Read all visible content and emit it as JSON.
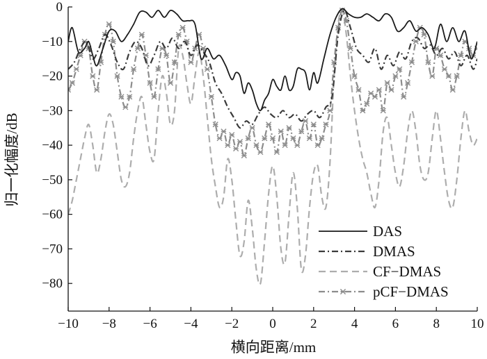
{
  "chart_data": {
    "type": "line",
    "title": "",
    "xlabel": "横向距离/mm",
    "ylabel": "归一化幅度/dB",
    "xlim": [
      -10,
      10
    ],
    "ylim": [
      -88,
      0
    ],
    "xticks": [
      -10,
      -8,
      -6,
      -4,
      -2,
      0,
      2,
      4,
      6,
      8,
      10
    ],
    "yticks": [
      0,
      -10,
      -20,
      -30,
      -40,
      -50,
      -60,
      -70,
      -80
    ],
    "xtick_labels": [
      "−10",
      "−8",
      "−6",
      "−4",
      "−2",
      "0",
      "2",
      "4",
      "6",
      "8",
      "10"
    ],
    "ytick_labels": [
      "0",
      "−10",
      "−20",
      "−30",
      "−40",
      "−50",
      "−60",
      "−70",
      "−80"
    ],
    "grid": false,
    "legend_position": "bottom-right",
    "series": [
      {
        "name": "DAS",
        "color": "#1a1a1a",
        "style": "solid",
        "x": [
          -10,
          -9.8,
          -9.5,
          -9.2,
          -9.0,
          -8.8,
          -8.6,
          -8.3,
          -8.0,
          -7.7,
          -7.4,
          -7.1,
          -6.8,
          -6.5,
          -6.2,
          -5.9,
          -5.6,
          -5.3,
          -5.0,
          -4.7,
          -4.4,
          -4.1,
          -3.8,
          -3.5,
          -3.2,
          -2.9,
          -2.6,
          -2.3,
          -2.0,
          -1.8,
          -1.6,
          -1.4,
          -1.2,
          -1.0,
          -0.8,
          -0.6,
          -0.4,
          -0.2,
          0,
          0.2,
          0.4,
          0.6,
          0.8,
          1.0,
          1.2,
          1.4,
          1.6,
          1.8,
          2.0,
          2.2,
          2.5,
          2.8,
          3.1,
          3.4,
          3.7,
          4.0,
          4.3,
          4.6,
          4.9,
          5.2,
          5.5,
          5.8,
          6.1,
          6.4,
          6.7,
          7.0,
          7.3,
          7.6,
          7.9,
          8.2,
          8.5,
          8.8,
          9.1,
          9.4,
          9.7,
          10
        ],
        "y": [
          -10,
          -6,
          -13,
          -12,
          -10,
          -14,
          -17,
          -12,
          -7,
          -7,
          -10,
          -8,
          -5,
          -1.5,
          -1.5,
          -3,
          -1,
          -3,
          -1,
          -2,
          -4,
          -4,
          -5,
          -15,
          -12,
          -15,
          -14,
          -17,
          -21,
          -19,
          -20,
          -25,
          -22,
          -24,
          -28,
          -30,
          -27,
          -25,
          -21,
          -23,
          -24,
          -20,
          -24,
          -23,
          -18,
          -18,
          -19,
          -24,
          -19,
          -22,
          -15,
          -8,
          -3,
          -0.5,
          -2,
          -3,
          -3,
          -2,
          -3,
          -4,
          -2,
          -3,
          -7,
          -6,
          -4,
          -7,
          -6,
          -8,
          -12,
          -5,
          -10,
          -6,
          -10,
          -7,
          -15,
          -10
        ]
      },
      {
        "name": "DMAS",
        "color": "#3a3a3a",
        "style": "dashdot",
        "x": [
          -10,
          -9.7,
          -9.4,
          -9.1,
          -8.8,
          -8.5,
          -8.2,
          -7.9,
          -7.6,
          -7.3,
          -7.0,
          -6.7,
          -6.4,
          -6.1,
          -5.8,
          -5.5,
          -5.2,
          -4.9,
          -4.6,
          -4.3,
          -4.0,
          -3.7,
          -3.4,
          -3.1,
          -2.8,
          -2.5,
          -2.2,
          -1.9,
          -1.6,
          -1.3,
          -1.0,
          -0.7,
          -0.4,
          -0.1,
          0.2,
          0.5,
          0.8,
          1.1,
          1.4,
          1.7,
          2.0,
          2.3,
          2.6,
          2.9,
          3.2,
          3.5,
          3.8,
          4.1,
          4.4,
          4.7,
          5.0,
          5.3,
          5.6,
          5.9,
          6.2,
          6.5,
          6.8,
          7.1,
          7.4,
          7.7,
          8.0,
          8.3,
          8.6,
          8.9,
          9.2,
          9.5,
          9.8,
          10
        ],
        "y": [
          -18,
          -16,
          -12,
          -10,
          -15,
          -12,
          -8,
          -11,
          -16,
          -18,
          -13,
          -10,
          -12,
          -17,
          -14,
          -10,
          -12,
          -9,
          -12,
          -10,
          -14,
          -11,
          -13,
          -16,
          -22,
          -25,
          -29,
          -32,
          -35,
          -33,
          -34,
          -31,
          -29,
          -31,
          -32,
          -30,
          -32,
          -31,
          -33,
          -31,
          -30,
          -32,
          -29,
          -26,
          -8,
          -1,
          -6,
          -12,
          -14,
          -16,
          -12,
          -18,
          -14,
          -17,
          -13,
          -15,
          -10,
          -9,
          -12,
          -11,
          -14,
          -12,
          -15,
          -13,
          -17,
          -14,
          -18,
          -15
        ]
      },
      {
        "name": "CF−DMAS",
        "color": "#adadad",
        "style": "dashed",
        "x": [
          -10,
          -9.8,
          -9.6,
          -9.4,
          -9.2,
          -9.0,
          -8.8,
          -8.6,
          -8.4,
          -8.2,
          -8.0,
          -7.8,
          -7.6,
          -7.4,
          -7.2,
          -7.0,
          -6.8,
          -6.6,
          -6.4,
          -6.2,
          -6.0,
          -5.8,
          -5.6,
          -5.4,
          -5.2,
          -5.0,
          -4.8,
          -4.6,
          -4.4,
          -4.2,
          -4.0,
          -3.8,
          -3.6,
          -3.4,
          -3.2,
          -3.0,
          -2.8,
          -2.6,
          -2.4,
          -2.2,
          -2.0,
          -1.8,
          -1.6,
          -1.4,
          -1.2,
          -1.0,
          -0.8,
          -0.6,
          -0.4,
          -0.2,
          0,
          0.2,
          0.4,
          0.6,
          0.8,
          1.0,
          1.2,
          1.4,
          1.6,
          1.8,
          2.0,
          2.2,
          2.4,
          2.6,
          2.8,
          3.0,
          3.2,
          3.4,
          3.6,
          3.8,
          4.0,
          4.2,
          4.4,
          4.6,
          4.8,
          5.0,
          5.2,
          5.4,
          5.6,
          5.8,
          6.0,
          6.2,
          6.4,
          6.6,
          6.8,
          7.0,
          7.2,
          7.4,
          7.6,
          7.8,
          8.0,
          8.2,
          8.4,
          8.6,
          8.8,
          9.0,
          9.2,
          9.4,
          9.6,
          9.8,
          10
        ],
        "y": [
          -60,
          -56,
          -50,
          -44,
          -38,
          -34,
          -40,
          -48,
          -44,
          -36,
          -31,
          -34,
          -42,
          -50,
          -52,
          -48,
          -38,
          -30,
          -26,
          -34,
          -42,
          -44,
          -30,
          -20,
          -25,
          -34,
          -30,
          -12,
          -14,
          -22,
          -28,
          -20,
          -13,
          -20,
          -32,
          -44,
          -52,
          -58,
          -55,
          -44,
          -50,
          -62,
          -72,
          -68,
          -56,
          -64,
          -76,
          -80,
          -68,
          -54,
          -46,
          -55,
          -70,
          -74,
          -60,
          -48,
          -58,
          -76,
          -72,
          -58,
          -48,
          -46,
          -55,
          -58,
          -45,
          -20,
          -5,
          -1,
          -8,
          -20,
          -30,
          -38,
          -44,
          -48,
          -54,
          -58,
          -50,
          -36,
          -32,
          -40,
          -48,
          -52,
          -46,
          -36,
          -30,
          -36,
          -46,
          -50,
          -48,
          -38,
          -30,
          -38,
          -48,
          -56,
          -58,
          -50,
          -38,
          -30,
          -36,
          -40,
          -38
        ]
      },
      {
        "name": "pCF−DMAS",
        "color": "#8c8c8c",
        "style": "dashdot-star",
        "x": [
          -10,
          -9.8,
          -9.6,
          -9.4,
          -9.2,
          -9.0,
          -8.8,
          -8.6,
          -8.4,
          -8.2,
          -8.0,
          -7.8,
          -7.6,
          -7.4,
          -7.2,
          -7.0,
          -6.8,
          -6.6,
          -6.4,
          -6.2,
          -6.0,
          -5.8,
          -5.6,
          -5.4,
          -5.2,
          -5.0,
          -4.8,
          -4.6,
          -4.4,
          -4.2,
          -4.0,
          -3.8,
          -3.6,
          -3.4,
          -3.2,
          -3.0,
          -2.8,
          -2.6,
          -2.4,
          -2.2,
          -2.0,
          -1.8,
          -1.6,
          -1.4,
          -1.2,
          -1.0,
          -0.8,
          -0.6,
          -0.4,
          -0.2,
          0,
          0.2,
          0.4,
          0.6,
          0.8,
          1.0,
          1.2,
          1.4,
          1.6,
          1.8,
          2.0,
          2.2,
          2.4,
          2.6,
          2.8,
          3.0,
          3.2,
          3.4,
          3.6,
          3.8,
          4.0,
          4.2,
          4.4,
          4.6,
          4.8,
          5.0,
          5.2,
          5.4,
          5.6,
          5.8,
          6.0,
          6.2,
          6.4,
          6.6,
          6.8,
          7.0,
          7.2,
          7.4,
          7.6,
          7.8,
          8.0,
          8.2,
          8.4,
          8.6,
          8.8,
          9.0,
          9.2,
          9.4,
          9.6,
          9.8,
          10
        ],
        "y": [
          -24,
          -22,
          -18,
          -14,
          -10,
          -12,
          -20,
          -24,
          -16,
          -8,
          -5,
          -10,
          -20,
          -26,
          -29,
          -26,
          -18,
          -12,
          -8,
          -14,
          -22,
          -26,
          -18,
          -12,
          -14,
          -22,
          -16,
          -8,
          -6,
          -10,
          -16,
          -12,
          -8,
          -12,
          -18,
          -26,
          -34,
          -38,
          -36,
          -40,
          -37,
          -41,
          -39,
          -43,
          -38,
          -35,
          -40,
          -42,
          -38,
          -34,
          -38,
          -42,
          -36,
          -40,
          -35,
          -38,
          -40,
          -36,
          -33,
          -38,
          -34,
          -40,
          -38,
          -34,
          -30,
          -16,
          -6,
          -1,
          -4,
          -12,
          -20,
          -24,
          -30,
          -28,
          -25,
          -26,
          -24,
          -30,
          -22,
          -24,
          -20,
          -18,
          -26,
          -22,
          -16,
          -10,
          -6,
          -8,
          -16,
          -20,
          -12,
          -14,
          -18,
          -20,
          -24,
          -20,
          -14,
          -10,
          -12,
          -14,
          -12
        ]
      }
    ],
    "legend": [
      "DAS",
      "DMAS",
      "CF−DMAS",
      "pCF−DMAS"
    ]
  }
}
